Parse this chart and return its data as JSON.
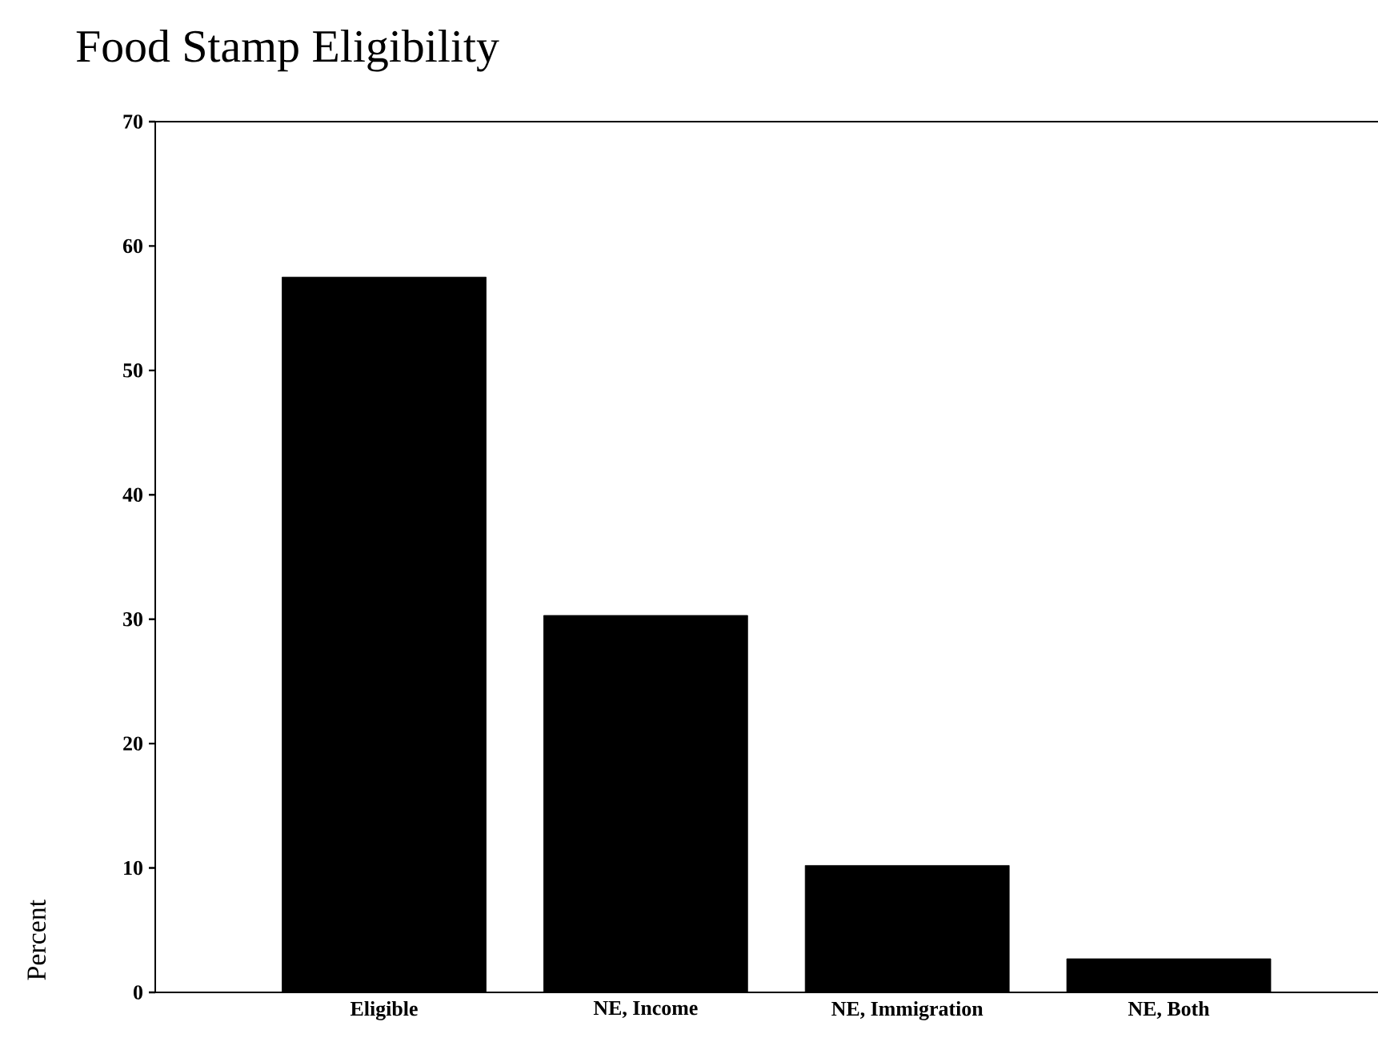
{
  "chart_data": {
    "type": "bar",
    "title": "Food Stamp Eligibility",
    "ylabel": "Percent",
    "categories": [
      "Eligible",
      "NE, Income",
      "NE, Immigration",
      "NE, Both"
    ],
    "values": [
      57.5,
      30.3,
      10.2,
      2.7
    ],
    "color": "#000000",
    "ylim": [
      0,
      70
    ],
    "yticks": [
      0,
      10,
      20,
      30,
      40,
      50,
      60,
      70
    ]
  }
}
